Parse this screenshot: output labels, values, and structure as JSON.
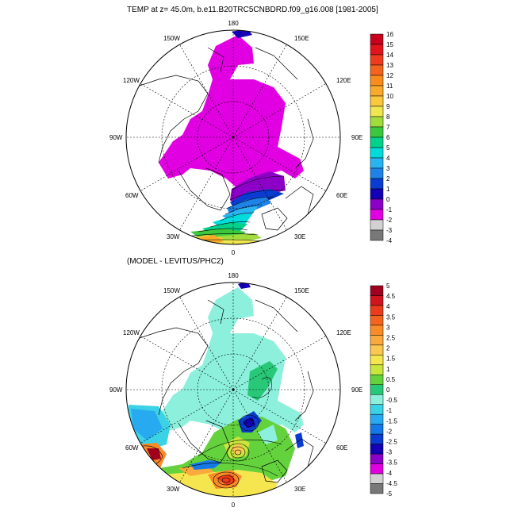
{
  "panels": [
    {
      "title": "TEMP at z=  45.0m, b.e11.B20TRC5CNBDRD.f09_g16.008 [1981-2005]",
      "colorbar": {
        "labels": [
          "16",
          "15",
          "14",
          "13",
          "12",
          "11",
          "10",
          "9",
          "8",
          "7",
          "6",
          "5",
          "4",
          "3",
          "2",
          "1",
          "0",
          "-1",
          "-2",
          "-3",
          "-4"
        ],
        "colors": [
          "#c8001e",
          "#e1141e",
          "#f03c1e",
          "#f5641e",
          "#fa8c1e",
          "#faaa28",
          "#fac83c",
          "#f0e650",
          "#a0dc3c",
          "#3cc83c",
          "#00d28c",
          "#00dcdc",
          "#28b4f0",
          "#1e82e6",
          "#0a3cd2",
          "#1400b4",
          "#8c00c8",
          "#e100e1",
          "#d2d2d2",
          "#787878"
        ]
      },
      "longitude_labels": [
        "180",
        "150E",
        "120E",
        "90E",
        "60E",
        "30E",
        "0",
        "30W",
        "60W",
        "90W",
        "120W",
        "150W"
      ]
    },
    {
      "title": "(MODEL - LEVITUS/PHC2)",
      "colorbar": {
        "labels": [
          "5",
          "4.5",
          "4",
          "3.5",
          "3",
          "2.5",
          "2",
          "1.5",
          "1",
          "0.5",
          "0",
          "-0.5",
          "-1",
          "-1.5",
          "-2",
          "-2.5",
          "-3",
          "-3.5",
          "-4",
          "-4.5",
          "-5"
        ],
        "colors": [
          "#a0001e",
          "#d2141e",
          "#eb3c1e",
          "#f5641e",
          "#fa8c28",
          "#faaa3c",
          "#fac850",
          "#f5e650",
          "#c8e63c",
          "#64d23c",
          "#28c878",
          "#8cf0dc",
          "#3cd2e6",
          "#28aaf0",
          "#1478e6",
          "#0a3cd2",
          "#1400b4",
          "#8c00c8",
          "#e100e1",
          "#d2d2d2",
          "#787878"
        ]
      },
      "longitude_labels": [
        "180",
        "150E",
        "120E",
        "90E",
        "60E",
        "30E",
        "0",
        "30W",
        "60W",
        "90W",
        "120W",
        "150W"
      ]
    }
  ]
}
